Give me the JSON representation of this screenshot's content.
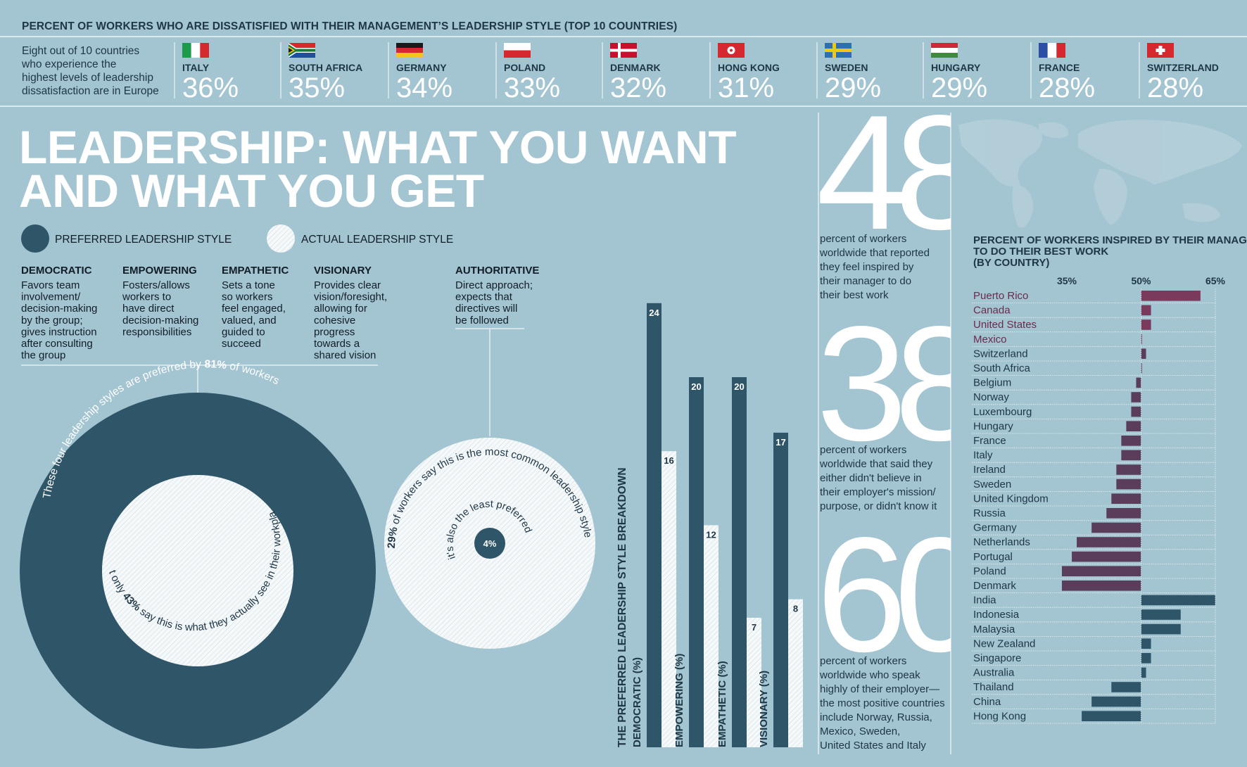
{
  "header": {
    "title": "PERCENT OF WORKERS WHO ARE DISSATISFIED WITH THEIR MANAGEMENT’S LEADERSHIP STYLE (TOP 10 COUNTRIES)",
    "intro_lines": [
      "Eight out of 10 countries",
      "who experience the",
      "highest levels of leadership",
      "dissatisfaction are in Europe"
    ],
    "countries": [
      {
        "name": "ITALY",
        "value": "36%",
        "flag": "italy-flag"
      },
      {
        "name": "SOUTH AFRICA",
        "value": "35%",
        "flag": "south-africa-flag"
      },
      {
        "name": "GERMANY",
        "value": "34%",
        "flag": "germany-flag"
      },
      {
        "name": "POLAND",
        "value": "33%",
        "flag": "poland-flag"
      },
      {
        "name": "DENMARK",
        "value": "32%",
        "flag": "denmark-flag"
      },
      {
        "name": "HONG KONG",
        "value": "31%",
        "flag": "hong-kong-flag"
      },
      {
        "name": "SWEDEN",
        "value": "29%",
        "flag": "sweden-flag"
      },
      {
        "name": "HUNGARY",
        "value": "29%",
        "flag": "hungary-flag"
      },
      {
        "name": "FRANCE",
        "value": "28%",
        "flag": "france-flag"
      },
      {
        "name": "SWITZERLAND",
        "value": "28%",
        "flag": "switzerland-flag"
      }
    ]
  },
  "main_title": {
    "line1": "LEADERSHIP: WHAT YOU WANT",
    "line2": "AND WHAT YOU GET"
  },
  "legend": {
    "preferred": "PREFERRED LEADERSHIP STYLE",
    "actual": "ACTUAL LEADERSHIP STYLE"
  },
  "styles": [
    {
      "name": "DEMOCRATIC",
      "desc": [
        "Favors team",
        "involvement/",
        "decision-making",
        "by the group;",
        "gives instruction",
        "after consulting",
        "the group"
      ]
    },
    {
      "name": "EMPOWERING",
      "desc": [
        "Fosters/allows",
        "workers to",
        "have direct",
        "decision-making",
        "responsibilities"
      ]
    },
    {
      "name": "EMPATHETIC",
      "desc": [
        "Sets a tone",
        "so workers",
        "feel engaged,",
        "valued, and",
        "guided to",
        "succeed"
      ]
    },
    {
      "name": "VISIONARY",
      "desc": [
        "Provides clear",
        "vision/foresight,",
        "allowing for",
        "cohesive",
        "progress",
        "towards a",
        "shared vision"
      ]
    },
    {
      "name": "AUTHORITATIVE",
      "desc": [
        "Direct approach;",
        "expects that",
        "directives will",
        "be followed"
      ]
    }
  ],
  "circles": {
    "outer_arc_prefix": "These four leadership styles are preferred by ",
    "outer_arc_pct": "81%",
    "outer_arc_suffix": " of workers",
    "inner_arc_prefix": "But only ",
    "inner_arc_pct": "43%",
    "inner_arc_suffix": " say this is what they actually see in their workplace",
    "auth_outer_prefix": "",
    "auth_outer_pct": "29%",
    "auth_outer_suffix": " of workers say this is the most common leadership style",
    "auth_inner": "it's also the least preferred",
    "auth_center": "4%"
  },
  "chart_data": [
    {
      "type": "bar",
      "title": "THE PREFERRED LEADERSHIP STYLE BREAKDOWN",
      "categories": [
        "DEMOCRATIC (%)",
        "EMPOWERING (%)",
        "EMPATHETIC (%)",
        "VISIONARY (%)"
      ],
      "series": [
        {
          "name": "PREFERRED LEADERSHIP STYLE",
          "values": [
            24,
            20,
            20,
            17
          ],
          "color": "#2f5568"
        },
        {
          "name": "ACTUAL LEADERSHIP STYLE",
          "values": [
            16,
            12,
            7,
            8
          ],
          "color": "#f4f7f8"
        }
      ],
      "ylim": [
        0,
        24
      ]
    },
    {
      "type": "bar",
      "orientation": "horizontal",
      "title": "PERCENT OF WORKERS INSPIRED BY THEIR MANAGERS TO DO THEIR BEST WORK (BY COUNTRY)",
      "tick_labels": [
        "35%",
        "50%",
        "65%"
      ],
      "ticks": [
        35,
        50,
        65
      ],
      "xlim": [
        35,
        65
      ],
      "baseline": 50,
      "categories": [
        "Puerto Rico",
        "Canada",
        "United States",
        "Mexico",
        "Switzerland",
        "South Africa",
        "Belgium",
        "Norway",
        "Luxembourg",
        "Hungary",
        "France",
        "Italy",
        "Ireland",
        "Sweden",
        "United Kingdom",
        "Russia",
        "Germany",
        "Netherlands",
        "Portugal",
        "Poland",
        "Denmark",
        "India",
        "Indonesia",
        "Malaysia",
        "New Zealand",
        "Singapore",
        "Australia",
        "Thailand",
        "China",
        "Hong Kong"
      ],
      "values": [
        62,
        52,
        52,
        50,
        51,
        50,
        49,
        48,
        48,
        47,
        46,
        46,
        45,
        45,
        44,
        43,
        40,
        37,
        36,
        34,
        34,
        65,
        58,
        58,
        52,
        52,
        51,
        44,
        40,
        38
      ],
      "groups": [
        "americas",
        "americas",
        "americas",
        "americas",
        "europe",
        "europe",
        "europe",
        "europe",
        "europe",
        "europe",
        "europe",
        "europe",
        "europe",
        "europe",
        "europe",
        "europe",
        "europe",
        "europe",
        "europe",
        "europe",
        "europe",
        "asia",
        "asia",
        "asia",
        "asia",
        "asia",
        "asia",
        "asia",
        "asia",
        "asia"
      ],
      "colors": {
        "americas": "#7a3a5c",
        "europe": "#5a3d5a",
        "asia": "#2f5568"
      }
    }
  ],
  "stats": [
    {
      "number": "48",
      "text": [
        "percent of workers",
        "worldwide that reported",
        "they feel inspired by",
        "their manager to do",
        "their best work"
      ]
    },
    {
      "number": "38",
      "text": [
        "percent of workers",
        "worldwide that said they",
        "either didn't believe in",
        "their employer's mission/",
        "purpose, or didn't know it"
      ]
    },
    {
      "number": "60",
      "text": [
        "percent of workers",
        "worldwide who speak",
        "highly of their employer—",
        "the most positive countries",
        "include Norway, Russia,",
        "Mexico, Sweden,",
        "United States and Italy"
      ]
    }
  ],
  "colors": {
    "dark": "#2f5568",
    "light": "#f4f7f8",
    "background": "#a3c4d1",
    "text": "#1e3646"
  }
}
